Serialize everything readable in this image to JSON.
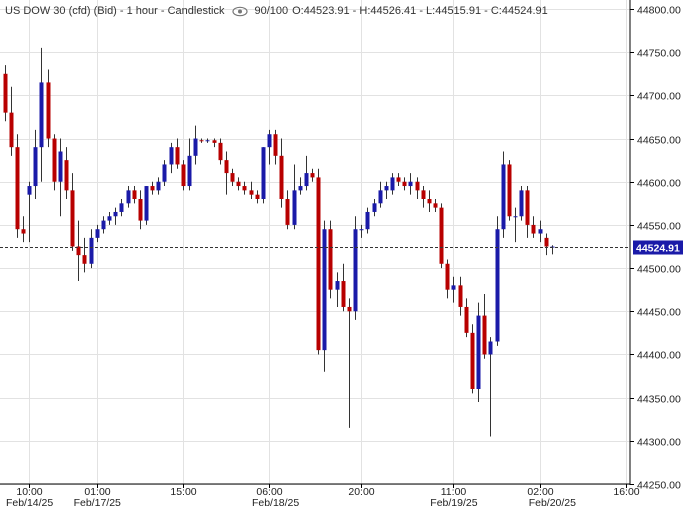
{
  "header": {
    "title": "US DOW 30 (cfd) (Bid) - 1 hour - Candlestick",
    "count": "90/100",
    "ohlc": "O:44523.91 - H:44526.41 - L:44515.91 - C:44524.91"
  },
  "last_price_label": "44524.91",
  "chart_data": {
    "type": "candlestick",
    "title": "US DOW 30 (cfd) (Bid) - 1 hour - Candlestick",
    "ylim": [
      44250,
      44800
    ],
    "y_ticks": [
      44250,
      44300,
      44350,
      44400,
      44450,
      44500,
      44550,
      44600,
      44650,
      44700,
      44750,
      44800
    ],
    "y_tick_labels": [
      "44250.00",
      "44300.00",
      "44350.00",
      "44400.00",
      "44450.00",
      "44500.00",
      "44550.00",
      "44600.00",
      "44650.00",
      "44700.00",
      "44750.00",
      "44800.00"
    ],
    "x_time_labels": [
      {
        "index": 4,
        "label": "10:00"
      },
      {
        "index": 15,
        "label": "01:00"
      },
      {
        "index": 29,
        "label": "15:00"
      },
      {
        "index": 43,
        "label": "06:00"
      },
      {
        "index": 58,
        "label": "20:00"
      },
      {
        "index": 73,
        "label": "11:00"
      },
      {
        "index": 87,
        "label": "02:00"
      },
      {
        "index": 101,
        "label": "16:00"
      }
    ],
    "x_date_labels": [
      {
        "index": 4,
        "label": "Feb/14/25"
      },
      {
        "index": 15,
        "label": "Feb/17/25"
      },
      {
        "index": 44,
        "label": "Feb/18/25"
      },
      {
        "index": 73,
        "label": "Feb/19/25"
      },
      {
        "index": 89,
        "label": "Feb/20/25"
      }
    ],
    "last_close": 44524.91,
    "bull_color": "#1a1aa8",
    "bear_color": "#b80000",
    "grid": true,
    "candles": [
      {
        "o": 44725,
        "h": 44735,
        "l": 44670,
        "c": 44680
      },
      {
        "o": 44680,
        "h": 44710,
        "l": 44630,
        "c": 44640
      },
      {
        "o": 44640,
        "h": 44655,
        "l": 44535,
        "c": 44545
      },
      {
        "o": 44545,
        "h": 44560,
        "l": 44530,
        "c": 44540
      },
      {
        "o": 44585,
        "h": 44600,
        "l": 44530,
        "c": 44595
      },
      {
        "o": 44595,
        "h": 44660,
        "l": 44580,
        "c": 44640
      },
      {
        "o": 44640,
        "h": 44755,
        "l": 44600,
        "c": 44715
      },
      {
        "o": 44715,
        "h": 44730,
        "l": 44640,
        "c": 44650
      },
      {
        "o": 44650,
        "h": 44655,
        "l": 44590,
        "c": 44600
      },
      {
        "o": 44600,
        "h": 44650,
        "l": 44560,
        "c": 44635
      },
      {
        "o": 44625,
        "h": 44640,
        "l": 44580,
        "c": 44590
      },
      {
        "o": 44590,
        "h": 44610,
        "l": 44520,
        "c": 44525
      },
      {
        "o": 44525,
        "h": 44555,
        "l": 44485,
        "c": 44515
      },
      {
        "o": 44515,
        "h": 44535,
        "l": 44495,
        "c": 44505
      },
      {
        "o": 44505,
        "h": 44545,
        "l": 44500,
        "c": 44535
      },
      {
        "o": 44535,
        "h": 44550,
        "l": 44530,
        "c": 44545
      },
      {
        "o": 44545,
        "h": 44560,
        "l": 44540,
        "c": 44555
      },
      {
        "o": 44555,
        "h": 44565,
        "l": 44550,
        "c": 44560
      },
      {
        "o": 44560,
        "h": 44570,
        "l": 44550,
        "c": 44565
      },
      {
        "o": 44565,
        "h": 44580,
        "l": 44560,
        "c": 44575
      },
      {
        "o": 44575,
        "h": 44595,
        "l": 44570,
        "c": 44590
      },
      {
        "o": 44590,
        "h": 44595,
        "l": 44575,
        "c": 44580
      },
      {
        "o": 44580,
        "h": 44590,
        "l": 44545,
        "c": 44555
      },
      {
        "o": 44555,
        "h": 44595,
        "l": 44550,
        "c": 44595
      },
      {
        "o": 44595,
        "h": 44600,
        "l": 44585,
        "c": 44590
      },
      {
        "o": 44590,
        "h": 44605,
        "l": 44585,
        "c": 44600
      },
      {
        "o": 44600,
        "h": 44625,
        "l": 44595,
        "c": 44620
      },
      {
        "o": 44620,
        "h": 44645,
        "l": 44610,
        "c": 44640
      },
      {
        "o": 44640,
        "h": 44650,
        "l": 44615,
        "c": 44620
      },
      {
        "o": 44620,
        "h": 44625,
        "l": 44590,
        "c": 44595
      },
      {
        "o": 44595,
        "h": 44650,
        "l": 44590,
        "c": 44630
      },
      {
        "o": 44630,
        "h": 44665,
        "l": 44620,
        "c": 44650
      },
      {
        "o": 44648,
        "h": 44650,
        "l": 44645,
        "c": 44647
      },
      {
        "o": 44647,
        "h": 44650,
        "l": 44645,
        "c": 44648
      },
      {
        "o": 44648,
        "h": 44650,
        "l": 44640,
        "c": 44645
      },
      {
        "o": 44645,
        "h": 44650,
        "l": 44620,
        "c": 44625
      },
      {
        "o": 44625,
        "h": 44635,
        "l": 44585,
        "c": 44610
      },
      {
        "o": 44610,
        "h": 44615,
        "l": 44595,
        "c": 44600
      },
      {
        "o": 44600,
        "h": 44605,
        "l": 44590,
        "c": 44595
      },
      {
        "o": 44595,
        "h": 44600,
        "l": 44585,
        "c": 44590
      },
      {
        "o": 44590,
        "h": 44600,
        "l": 44580,
        "c": 44585
      },
      {
        "o": 44585,
        "h": 44590,
        "l": 44575,
        "c": 44580
      },
      {
        "o": 44580,
        "h": 44640,
        "l": 44575,
        "c": 44640
      },
      {
        "o": 44640,
        "h": 44660,
        "l": 44620,
        "c": 44655
      },
      {
        "o": 44655,
        "h": 44660,
        "l": 44620,
        "c": 44630
      },
      {
        "o": 44630,
        "h": 44650,
        "l": 44570,
        "c": 44580
      },
      {
        "o": 44580,
        "h": 44590,
        "l": 44545,
        "c": 44550
      },
      {
        "o": 44550,
        "h": 44620,
        "l": 44545,
        "c": 44590
      },
      {
        "o": 44590,
        "h": 44605,
        "l": 44585,
        "c": 44595
      },
      {
        "o": 44595,
        "h": 44630,
        "l": 44590,
        "c": 44610
      },
      {
        "o": 44610,
        "h": 44615,
        "l": 44600,
        "c": 44605
      },
      {
        "o": 44605,
        "h": 44615,
        "l": 44400,
        "c": 44405
      },
      {
        "o": 44405,
        "h": 44555,
        "l": 44380,
        "c": 44545
      },
      {
        "o": 44545,
        "h": 44555,
        "l": 44465,
        "c": 44475
      },
      {
        "o": 44475,
        "h": 44495,
        "l": 44455,
        "c": 44485
      },
      {
        "o": 44485,
        "h": 44505,
        "l": 44450,
        "c": 44455
      },
      {
        "o": 44455,
        "h": 44465,
        "l": 44315,
        "c": 44450
      },
      {
        "o": 44450,
        "h": 44560,
        "l": 44440,
        "c": 44545
      },
      {
        "o": 44545,
        "h": 44550,
        "l": 44535,
        "c": 44545
      },
      {
        "o": 44545,
        "h": 44570,
        "l": 44540,
        "c": 44565
      },
      {
        "o": 44565,
        "h": 44580,
        "l": 44560,
        "c": 44575
      },
      {
        "o": 44575,
        "h": 44600,
        "l": 44570,
        "c": 44590
      },
      {
        "o": 44590,
        "h": 44600,
        "l": 44580,
        "c": 44595
      },
      {
        "o": 44590,
        "h": 44610,
        "l": 44585,
        "c": 44605
      },
      {
        "o": 44605,
        "h": 44610,
        "l": 44595,
        "c": 44600
      },
      {
        "o": 44600,
        "h": 44605,
        "l": 44590,
        "c": 44595
      },
      {
        "o": 44595,
        "h": 44610,
        "l": 44585,
        "c": 44600
      },
      {
        "o": 44600,
        "h": 44605,
        "l": 44580,
        "c": 44590
      },
      {
        "o": 44590,
        "h": 44595,
        "l": 44570,
        "c": 44580
      },
      {
        "o": 44580,
        "h": 44590,
        "l": 44565,
        "c": 44575
      },
      {
        "o": 44575,
        "h": 44580,
        "l": 44565,
        "c": 44570
      },
      {
        "o": 44570,
        "h": 44575,
        "l": 44500,
        "c": 44505
      },
      {
        "o": 44505,
        "h": 44510,
        "l": 44465,
        "c": 44475
      },
      {
        "o": 44475,
        "h": 44490,
        "l": 44460,
        "c": 44480
      },
      {
        "o": 44480,
        "h": 44490,
        "l": 44445,
        "c": 44455
      },
      {
        "o": 44455,
        "h": 44465,
        "l": 44420,
        "c": 44425
      },
      {
        "o": 44425,
        "h": 44435,
        "l": 44355,
        "c": 44360
      },
      {
        "o": 44360,
        "h": 44460,
        "l": 44345,
        "c": 44445
      },
      {
        "o": 44445,
        "h": 44470,
        "l": 44395,
        "c": 44400
      },
      {
        "o": 44400,
        "h": 44420,
        "l": 44305,
        "c": 44415
      },
      {
        "o": 44415,
        "h": 44560,
        "l": 44410,
        "c": 44545
      },
      {
        "o": 44545,
        "h": 44635,
        "l": 44535,
        "c": 44620
      },
      {
        "o": 44620,
        "h": 44625,
        "l": 44555,
        "c": 44560
      },
      {
        "o": 44560,
        "h": 44570,
        "l": 44530,
        "c": 44560
      },
      {
        "o": 44560,
        "h": 44595,
        "l": 44555,
        "c": 44590
      },
      {
        "o": 44590,
        "h": 44595,
        "l": 44535,
        "c": 44550
      },
      {
        "o": 44550,
        "h": 44560,
        "l": 44535,
        "c": 44540
      },
      {
        "o": 44540,
        "h": 44555,
        "l": 44530,
        "c": 44545
      },
      {
        "o": 44535,
        "h": 44540,
        "l": 44515,
        "c": 44525
      },
      {
        "o": 44523.91,
        "h": 44526.41,
        "l": 44515.91,
        "c": 44524.91
      }
    ]
  }
}
